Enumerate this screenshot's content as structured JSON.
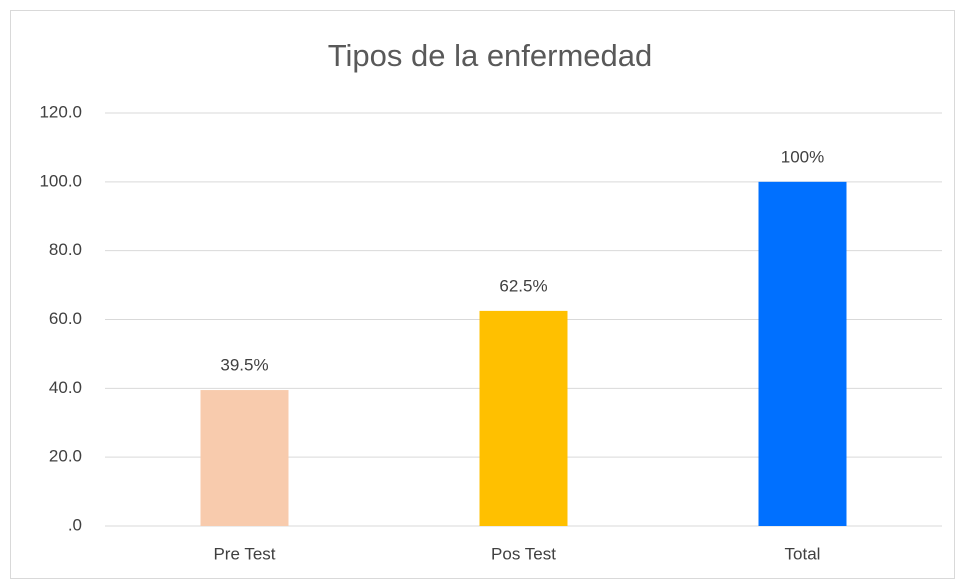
{
  "chart_data": {
    "type": "bar",
    "title": "Tipos de la enfermedad",
    "categories": [
      "Pre Test",
      "Pos Test",
      "Total"
    ],
    "values": [
      39.5,
      62.5,
      100
    ],
    "value_labels": [
      "39.5%",
      "62.5%",
      "100%"
    ],
    "colors": [
      "#f8cbad",
      "#ffc000",
      "#0070ff"
    ],
    "ylim": [
      0,
      120
    ],
    "yticks": [
      {
        "value": 0,
        "label": ".0"
      },
      {
        "value": 20,
        "label": "20.0"
      },
      {
        "value": 40,
        "label": "40.0"
      },
      {
        "value": 60,
        "label": "60.0"
      },
      {
        "value": 80,
        "label": "80.0"
      },
      {
        "value": 100,
        "label": "100.0"
      },
      {
        "value": 120,
        "label": "120.0"
      }
    ],
    "grid": true
  }
}
